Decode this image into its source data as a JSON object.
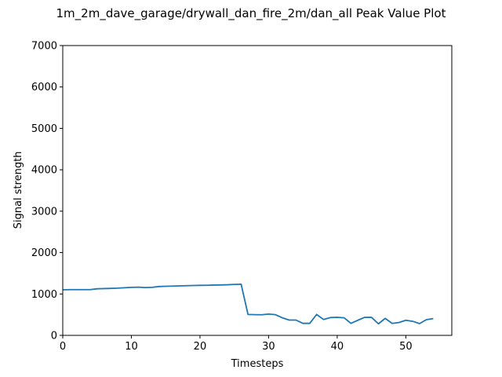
{
  "chart_data": {
    "type": "line",
    "title": "1m_2m_dave_garage/drywall_dan_fire_2m/dan_all Peak Value Plot",
    "xlabel": "Timesteps",
    "ylabel": "Signal strength",
    "xlim": [
      0,
      56.7
    ],
    "ylim": [
      0,
      7000
    ],
    "xticks": [
      0,
      10,
      20,
      30,
      40,
      50
    ],
    "yticks": [
      0,
      1000,
      2000,
      3000,
      4000,
      5000,
      6000,
      7000
    ],
    "grid": false,
    "legend": "none",
    "series": [
      {
        "color": "#1f77b4",
        "x": [
          0,
          1,
          2,
          3,
          4,
          5,
          6,
          7,
          8,
          9,
          10,
          11,
          12,
          13,
          14,
          15,
          16,
          17,
          18,
          19,
          20,
          21,
          22,
          23,
          24,
          25,
          26,
          27,
          28,
          29,
          30,
          31,
          32,
          33,
          34,
          35,
          36,
          37,
          38,
          39,
          40,
          41,
          42,
          43,
          44,
          45,
          46,
          47,
          48,
          49,
          50,
          51,
          52,
          53,
          54
        ],
        "y": [
          1100,
          1105,
          1105,
          1105,
          1105,
          1125,
          1130,
          1135,
          1140,
          1150,
          1160,
          1165,
          1155,
          1160,
          1180,
          1185,
          1190,
          1195,
          1200,
          1205,
          1208,
          1210,
          1215,
          1218,
          1222,
          1230,
          1235,
          505,
          500,
          498,
          515,
          500,
          425,
          370,
          370,
          290,
          290,
          505,
          385,
          430,
          435,
          425,
          290,
          365,
          435,
          435,
          280,
          410,
          290,
          310,
          365,
          340,
          285,
          380,
          405
        ]
      }
    ]
  }
}
